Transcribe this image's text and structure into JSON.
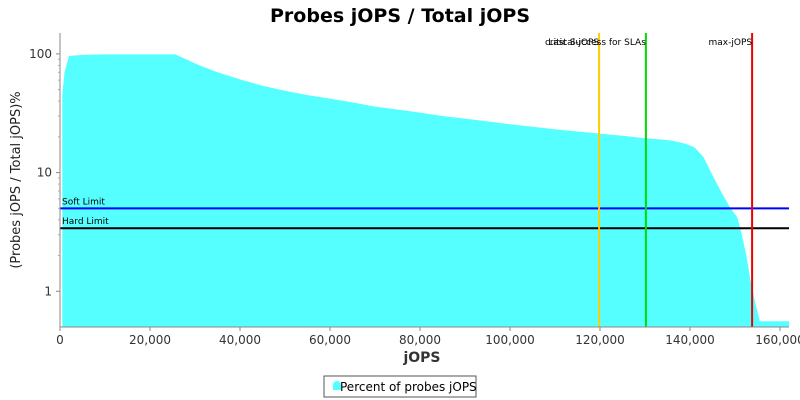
{
  "chart_data": {
    "type": "area",
    "title": "Probes jOPS / Total jOPS",
    "xlabel": "jOPS",
    "ylabel": "(Probes jOPS / Total jOPS)%",
    "y_scale": "log",
    "xlim": [
      0,
      162000
    ],
    "ylim": [
      0.5,
      150
    ],
    "x_ticks": [
      0,
      20000,
      40000,
      60000,
      80000,
      100000,
      120000,
      140000,
      160000
    ],
    "x_tick_labels": [
      "0",
      "20,000",
      "40,000",
      "60,000",
      "80,000",
      "100,000",
      "120,000",
      "140,000",
      "160,000"
    ],
    "y_ticks": [
      1,
      10,
      100
    ],
    "y_tick_labels": [
      "1",
      "10",
      "100"
    ],
    "grid": false,
    "legend_position": "bottom-center",
    "series": [
      {
        "name": "Percent of probes jOPS",
        "color": "#55ffff",
        "x": [
          500,
          1000,
          2000,
          5000,
          10000,
          15000,
          20000,
          25600,
          28000,
          31000,
          35000,
          40000,
          45000,
          50000,
          55000,
          60000,
          65000,
          70000,
          75000,
          80000,
          85000,
          90000,
          95000,
          100000,
          105000,
          110000,
          115000,
          120000,
          125000,
          130000,
          133000,
          136000,
          139000,
          141000,
          143000,
          145000,
          147000,
          149000,
          150500,
          151500,
          152500,
          153500,
          154500,
          155500,
          162000
        ],
        "y": [
          45,
          70,
          96,
          98,
          99,
          99,
          99,
          99,
          90,
          80,
          70,
          61,
          54,
          49,
          45,
          42,
          39,
          36,
          34,
          32,
          30,
          28.5,
          27,
          25.5,
          24.3,
          23.2,
          22.2,
          21.3,
          20.4,
          19.5,
          19.1,
          18.6,
          17.5,
          16.3,
          13.5,
          9.5,
          6.8,
          5,
          4.2,
          3,
          2,
          1.2,
          0.8,
          0.56,
          0.56
        ]
      }
    ],
    "reference_lines": [
      {
        "orientation": "horizontal",
        "label": "Soft Limit",
        "value": 5,
        "color": "#0000ff"
      },
      {
        "orientation": "horizontal",
        "label": "Hard Limit",
        "value": 3.4,
        "color": "#000000"
      },
      {
        "orientation": "vertical",
        "label": "critical-jOPS",
        "value": 119800,
        "color": "#ffcc00"
      },
      {
        "orientation": "vertical",
        "label": "Last Success for SLAs",
        "value": 130200,
        "color": "#00dd00"
      },
      {
        "orientation": "vertical",
        "label": "max-jOPS",
        "value": 153800,
        "color": "#ee0000"
      }
    ]
  }
}
